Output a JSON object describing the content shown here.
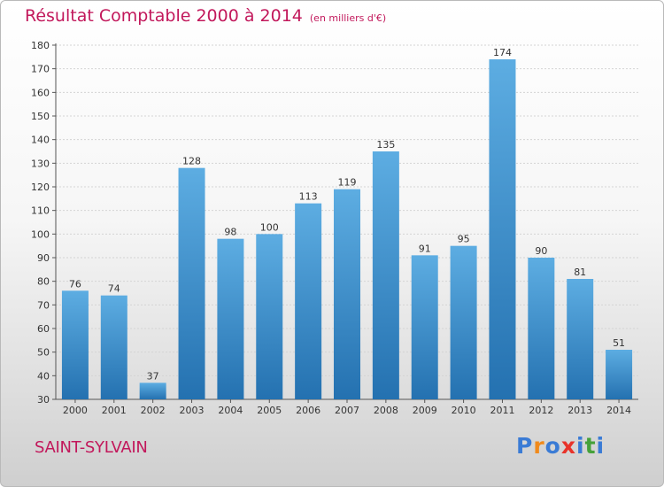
{
  "title": {
    "main": "Résultat Comptable 2000 à 2014",
    "sub": "(en milliers d'€)"
  },
  "commune": "SAINT-SYLVAIN",
  "logo": {
    "letters": [
      "P",
      "r",
      "o",
      "x",
      "i",
      "t",
      "i"
    ],
    "colors": [
      "#3a7bd5",
      "#f08a1c",
      "#3a7bd5",
      "#e8332a",
      "#3a7bd5",
      "#46a13a",
      "#3a7bd5"
    ]
  },
  "colors": {
    "title": "#c2185b",
    "bar_top": "#5dade2",
    "bar_bottom": "#2471b0"
  },
  "chart_data": {
    "type": "bar",
    "categories": [
      "2000",
      "2001",
      "2002",
      "2003",
      "2004",
      "2005",
      "2006",
      "2007",
      "2008",
      "2009",
      "2010",
      "2011",
      "2012",
      "2013",
      "2014"
    ],
    "values": [
      76,
      74,
      37,
      128,
      98,
      100,
      113,
      119,
      135,
      91,
      95,
      174,
      90,
      81,
      51
    ],
    "ylim": [
      30,
      180
    ],
    "yticks": [
      30,
      40,
      50,
      60,
      70,
      80,
      90,
      100,
      110,
      120,
      130,
      140,
      150,
      160,
      170,
      180
    ],
    "grid": true
  }
}
